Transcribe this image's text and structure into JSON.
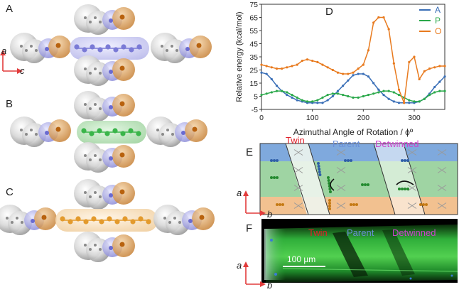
{
  "panels": {
    "a": {
      "letter": "A"
    },
    "b": {
      "letter": "B"
    },
    "c": {
      "letter": "C"
    },
    "d": {
      "letter": "D"
    },
    "e": {
      "letter": "E"
    },
    "f": {
      "letter": "F"
    }
  },
  "axes_abc": {
    "vertical": "a",
    "horizontal": "c"
  },
  "axes_e": {
    "vertical": "a",
    "horizontal": "b"
  },
  "axes_f": {
    "vertical": "a",
    "horizontal": "b"
  },
  "panel_e": {
    "twin": "Twin",
    "parent": "Parent",
    "detwinned": "Detwinned"
  },
  "panel_f": {
    "twin": "Twin",
    "parent": "Parent",
    "detwinned": "Detwinned",
    "scale": "100 µm"
  },
  "colors": {
    "A": "#3a6fb7",
    "P": "#2aa84a",
    "O": "#e87a1e",
    "twin_label": "#e0202a",
    "parent_label": "#6a8fd8",
    "detwinned_label": "#cc44cc"
  },
  "chart_data": {
    "type": "line",
    "title": "",
    "xlabel": "Azimuthal Angle of Rotation / ϕº",
    "ylabel": "Relative energy (kcal/mol)",
    "xlim": [
      0,
      360
    ],
    "ylim": [
      -5,
      75
    ],
    "x_ticks": [
      "0",
      "100",
      "200",
      "300"
    ],
    "y_ticks": [
      "-5",
      "5",
      "15",
      "25",
      "35",
      "45",
      "55",
      "65",
      "75"
    ],
    "legend_position": "top-right",
    "series": [
      {
        "name": "A",
        "color": "#3a6fb7",
        "x": [
          0,
          10,
          20,
          30,
          40,
          50,
          60,
          70,
          80,
          90,
          100,
          110,
          120,
          130,
          140,
          150,
          160,
          170,
          180,
          190,
          200,
          210,
          220,
          230,
          240,
          250,
          260,
          270,
          280,
          290,
          300,
          310,
          320,
          330,
          340,
          350,
          360
        ],
        "y": [
          23,
          22,
          18,
          13,
          9,
          6,
          4,
          2,
          1,
          0,
          0,
          0,
          0,
          2,
          5,
          9,
          13,
          17,
          21,
          22,
          22,
          20,
          15,
          10,
          6,
          3,
          1,
          0,
          0,
          0,
          0,
          1,
          3,
          7,
          12,
          16,
          20
        ]
      },
      {
        "name": "P",
        "color": "#2aa84a",
        "x": [
          0,
          10,
          20,
          30,
          40,
          50,
          60,
          70,
          80,
          90,
          100,
          110,
          120,
          130,
          140,
          150,
          160,
          170,
          180,
          190,
          200,
          210,
          220,
          230,
          240,
          250,
          260,
          270,
          280,
          290,
          300,
          310,
          320,
          330,
          340,
          350,
          360
        ],
        "y": [
          6,
          7,
          8,
          9,
          9,
          8,
          6,
          4,
          2,
          1,
          1,
          2,
          4,
          6,
          7,
          7,
          6,
          5,
          4,
          4,
          5,
          6,
          7,
          8,
          9,
          9,
          8,
          6,
          4,
          2,
          1,
          1,
          3,
          6,
          8,
          9,
          9
        ]
      },
      {
        "name": "O",
        "color": "#e87a1e",
        "x": [
          0,
          10,
          20,
          30,
          40,
          50,
          60,
          70,
          80,
          90,
          100,
          110,
          120,
          130,
          140,
          150,
          160,
          170,
          180,
          190,
          200,
          210,
          220,
          230,
          240,
          250,
          260,
          270,
          280,
          290,
          300,
          310,
          320,
          330,
          340,
          350,
          360
        ],
        "y": [
          29,
          28,
          27,
          26,
          26,
          27,
          28,
          29,
          32,
          33,
          32,
          31,
          29,
          27,
          25,
          23,
          22,
          22,
          23,
          26,
          29,
          40,
          61,
          65,
          65,
          56,
          30,
          10,
          0,
          31,
          35,
          18,
          24,
          26,
          27,
          28,
          28
        ]
      }
    ]
  }
}
